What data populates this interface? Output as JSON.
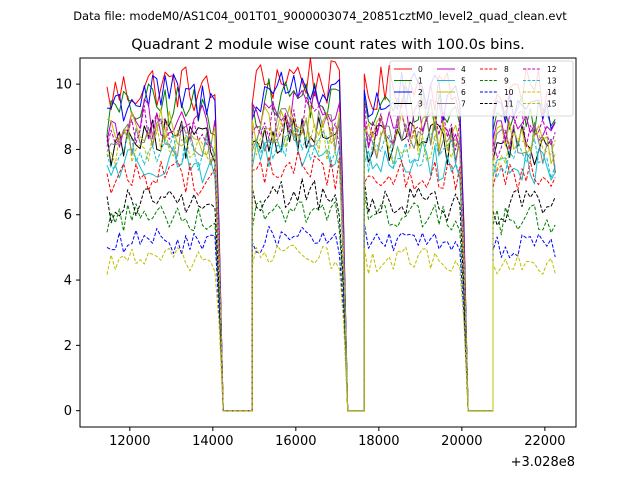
{
  "chart_data": {
    "type": "line",
    "suptitle": "Data file: modeM0/AS1C04_001T01_9000003074_20851cztM0_level2_quad_clean.evt",
    "title": "Quadrant 2 module wise count rates with 100.0s bins.",
    "xlabel": "",
    "ylabel": "",
    "x_offset_label": "+3.028e8",
    "xlim": [
      10800,
      22750
    ],
    "ylim": [
      -0.5,
      10.8
    ],
    "x_ticks": [
      12000,
      14000,
      16000,
      18000,
      20000,
      22000
    ],
    "x_tick_labels": [
      "12000",
      "14000",
      "16000",
      "18000",
      "20000",
      "22000"
    ],
    "y_ticks": [
      0,
      2,
      4,
      6,
      8,
      10
    ],
    "y_tick_labels": [
      "0",
      "2",
      "4",
      "6",
      "8",
      "10"
    ],
    "grid": false,
    "legend_position": "top-right",
    "segments": [
      {
        "x_start": 11450,
        "x_end": 14050
      },
      {
        "x_start": 14950,
        "x_end": 17050
      },
      {
        "x_start": 17650,
        "x_end": 19950
      },
      {
        "x_start": 20750,
        "x_end": 22250
      }
    ],
    "zero_intervals": [
      [
        14250,
        14950
      ],
      [
        17250,
        17650
      ],
      [
        20150,
        20750
      ]
    ],
    "series": [
      {
        "name": "0",
        "color": "#ff0000",
        "dash": "solid",
        "level": 9.6
      },
      {
        "name": "1",
        "color": "#008000",
        "dash": "solid",
        "level": 9.0
      },
      {
        "name": "2",
        "color": "#0000ff",
        "dash": "solid",
        "level": 9.3
      },
      {
        "name": "3",
        "color": "#000000",
        "dash": "solid",
        "level": 8.0
      },
      {
        "name": "4",
        "color": "#bf00bf",
        "dash": "solid",
        "level": 8.6
      },
      {
        "name": "5",
        "color": "#17becf",
        "dash": "solid",
        "level": 7.4
      },
      {
        "name": "6",
        "color": "#bfbf00",
        "dash": "solid",
        "level": 8.3
      },
      {
        "name": "7",
        "color": "#808080",
        "dash": "solid",
        "level": 8.1
      },
      {
        "name": "8",
        "color": "#ff0000",
        "dash": "dashed",
        "level": 7.0
      },
      {
        "name": "9",
        "color": "#008000",
        "dash": "dashed",
        "level": 5.8
      },
      {
        "name": "10",
        "color": "#0000ff",
        "dash": "dashed",
        "level": 5.0
      },
      {
        "name": "11",
        "color": "#000000",
        "dash": "dashed",
        "level": 6.2
      },
      {
        "name": "12",
        "color": "#bf00bf",
        "dash": "dashed",
        "level": 8.4
      },
      {
        "name": "13",
        "color": "#17becf",
        "dash": "dashed",
        "level": 7.7
      },
      {
        "name": "14",
        "color": "#bfbf00",
        "dash": "dashed",
        "level": 4.5
      },
      {
        "name": "15",
        "color": "#bfbf00",
        "dash": "dashed",
        "level": 7.9
      }
    ]
  }
}
